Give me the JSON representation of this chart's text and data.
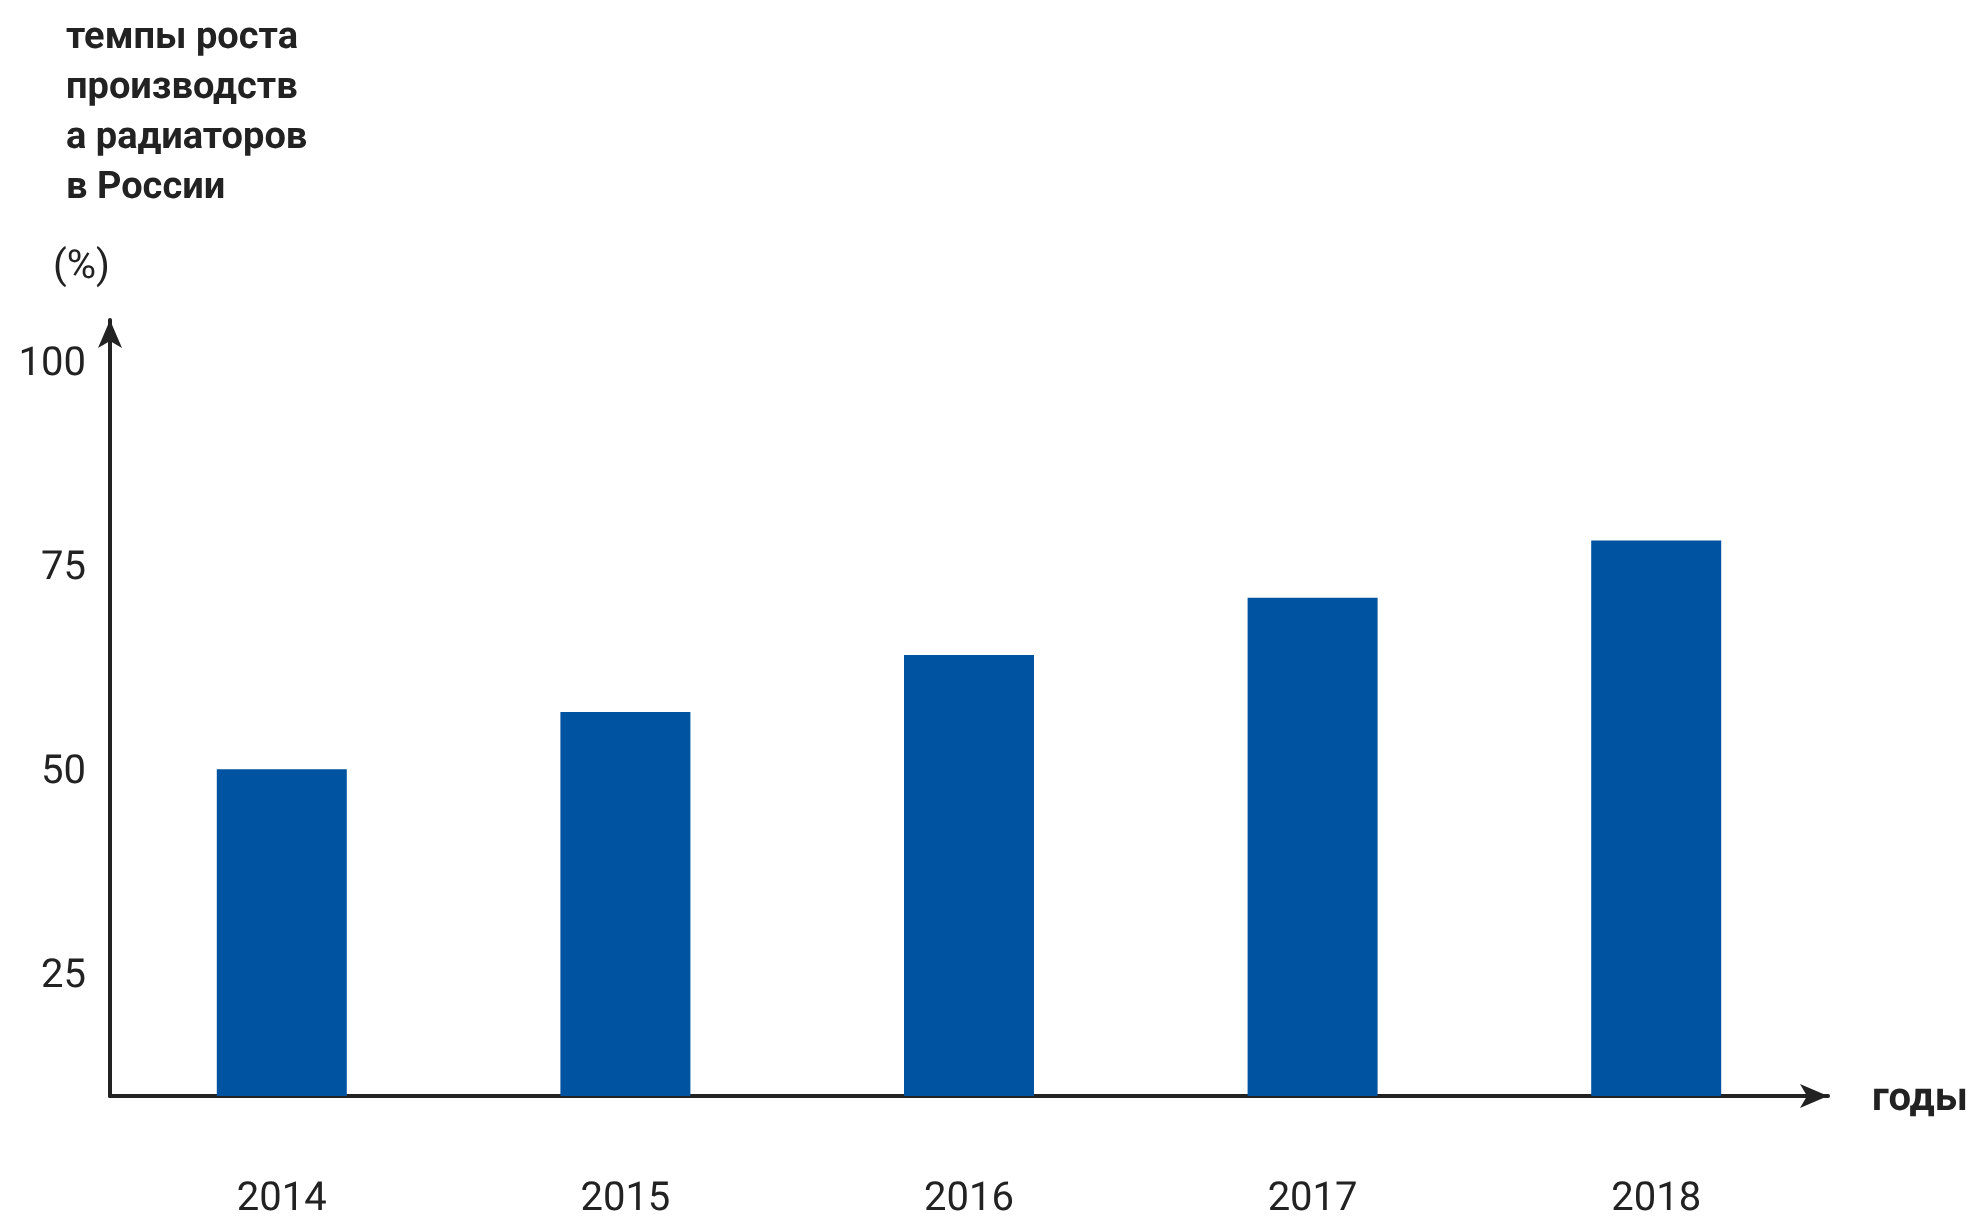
{
  "chart_data": {
    "type": "bar",
    "title": "темпы роста производства радиаторов в России",
    "ylabel": "(%)",
    "xlabel": "годы",
    "categories": [
      "2014",
      "2015",
      "2016",
      "2017",
      "2018"
    ],
    "values": [
      50,
      57,
      64,
      71,
      78
    ],
    "color": "#0053a0",
    "ylim": [
      10,
      105
    ],
    "yticks": [
      25,
      50,
      75,
      100
    ],
    "grid": false
  }
}
